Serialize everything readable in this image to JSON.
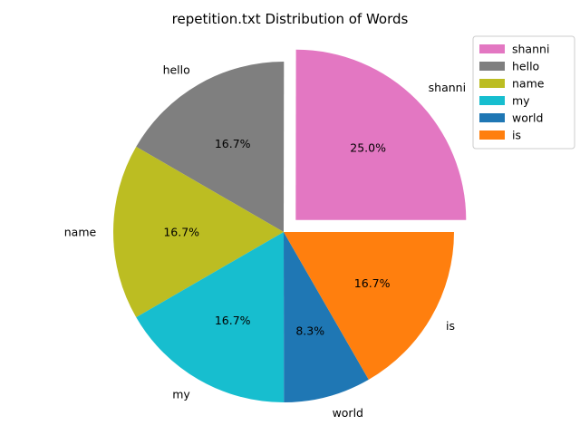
{
  "chart_data": {
    "type": "pie",
    "title": "repetition.txt Distribution of Words",
    "slices": [
      {
        "label": "shanni",
        "percent_label": "25.0%",
        "value": 25.0,
        "color": "#e377c2",
        "exploded": true
      },
      {
        "label": "hello",
        "percent_label": "16.7%",
        "value": 16.7,
        "color": "#7f7f7f",
        "exploded": false
      },
      {
        "label": "name",
        "percent_label": "16.7%",
        "value": 16.7,
        "color": "#bcbd22",
        "exploded": false
      },
      {
        "label": "my",
        "percent_label": "16.7%",
        "value": 16.7,
        "color": "#17becf",
        "exploded": false
      },
      {
        "label": "world",
        "percent_label": "8.3%",
        "value": 8.3,
        "color": "#1f77b4",
        "exploded": false
      },
      {
        "label": "is",
        "percent_label": "16.7%",
        "value": 16.7,
        "color": "#ff7f0e",
        "exploded": false
      }
    ],
    "start_angle_deg": 0,
    "direction": "counterclockwise",
    "legend_placement": "top-right"
  }
}
